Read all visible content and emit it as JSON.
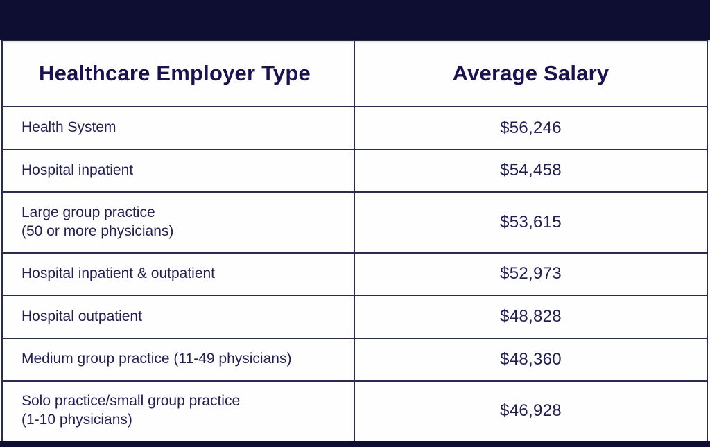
{
  "colors": {
    "bar": "#0e0e33",
    "border": "#2b2b4d",
    "heading": "#1a1250",
    "text": "#221f52"
  },
  "table": {
    "headers": {
      "employer_type": "Healthcare Employer Type",
      "average_salary": "Average Salary"
    },
    "rows": [
      {
        "label": "Health System",
        "salary": "$56,246"
      },
      {
        "label": "Hospital inpatient",
        "salary": "$54,458"
      },
      {
        "label": "Large group practice\n(50 or more physicians)",
        "salary": "$53,615"
      },
      {
        "label": "Hospital inpatient & outpatient",
        "salary": "$52,973"
      },
      {
        "label": "Hospital outpatient",
        "salary": "$48,828"
      },
      {
        "label": "Medium group practice (11-49 physicians)",
        "salary": "$48,360"
      },
      {
        "label": "Solo practice/small group practice\n (1-10 physicians)",
        "salary": "$46,928"
      }
    ]
  },
  "chart_data": {
    "type": "table",
    "title": "",
    "columns": [
      "Healthcare Employer Type",
      "Average Salary"
    ],
    "rows": [
      [
        "Health System",
        "$56,246"
      ],
      [
        "Hospital inpatient",
        "$54,458"
      ],
      [
        "Large group practice (50 or more physicians)",
        "$53,615"
      ],
      [
        "Hospital inpatient & outpatient",
        "$52,973"
      ],
      [
        "Hospital outpatient",
        "$48,828"
      ],
      [
        "Medium group practice (11-49 physicians)",
        "$48,360"
      ],
      [
        "Solo practice/small group practice (1-10 physicians)",
        "$46,928"
      ]
    ],
    "values_numeric": [
      56246,
      54458,
      53615,
      52973,
      48828,
      48360,
      46928
    ]
  }
}
